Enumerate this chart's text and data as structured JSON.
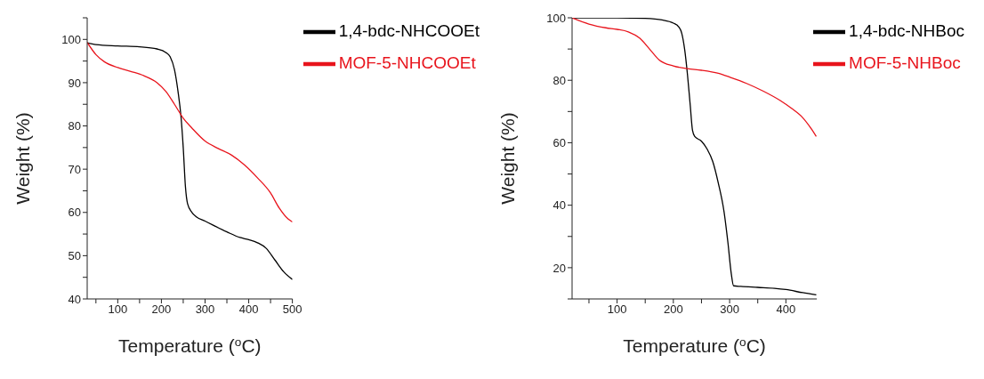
{
  "chart_data": [
    {
      "type": "line",
      "xlabel": "Temperature ($^{o}$C)",
      "ylabel": "Weight (%)",
      "xlim": [
        30,
        500
      ],
      "ylim": [
        40,
        105
      ],
      "xticks": [
        {
          "value": 50,
          "label": null
        },
        100,
        {
          "value": 150,
          "label": null
        },
        200,
        {
          "value": 250,
          "label": null
        },
        300,
        {
          "value": 350,
          "label": null
        },
        400,
        {
          "value": 450,
          "label": null
        },
        500
      ],
      "yticks": [
        40,
        {
          "value": 45,
          "label": null
        },
        50,
        {
          "value": 55,
          "label": null
        },
        60,
        {
          "value": 65,
          "label": null
        },
        70,
        {
          "value": 75,
          "label": null
        },
        80,
        {
          "value": 85,
          "label": null
        },
        90,
        {
          "value": 95,
          "label": null
        },
        100,
        {
          "value": 105,
          "label": null
        }
      ],
      "grid": false,
      "legend": "top right",
      "marker": "none",
      "line_style": "solid",
      "series": [
        {
          "name": "1,4-bdc-NHCOOEt",
          "color": "#000000",
          "x": [
            30,
            50,
            100,
            150,
            190,
            210,
            220,
            230,
            238,
            245,
            250,
            255,
            260,
            270,
            280,
            300,
            350,
            380,
            400,
            420,
            440,
            460,
            480,
            500
          ],
          "values": [
            99.2,
            98.8,
            98.5,
            98.3,
            97.8,
            97,
            96,
            93,
            88,
            82,
            75,
            66,
            62,
            60,
            59,
            58,
            55.5,
            54.2,
            53.7,
            53,
            51.7,
            49,
            46.3,
            44.5
          ]
        },
        {
          "name": "MOF-5-NHCOOEt",
          "color": "#e8141c",
          "x": [
            30,
            50,
            70,
            100,
            130,
            160,
            190,
            210,
            230,
            250,
            270,
            300,
            330,
            360,
            390,
            420,
            450,
            470,
            490,
            500
          ],
          "values": [
            99.3,
            96.5,
            94.8,
            93.5,
            92.6,
            91.6,
            90,
            88,
            85,
            81.8,
            79.5,
            76.5,
            74.8,
            73.3,
            71,
            68,
            64.5,
            61,
            58.5,
            57.8
          ]
        }
      ]
    },
    {
      "type": "line",
      "xlabel": "Temperature ($^{o}$C)",
      "ylabel": "Weight (%)",
      "xlim": [
        20,
        455
      ],
      "ylim": [
        10,
        100
      ],
      "xticks": [
        {
          "value": 50,
          "label": null
        },
        100,
        {
          "value": 150,
          "label": null
        },
        200,
        {
          "value": 250,
          "label": null
        },
        300,
        {
          "value": 350,
          "label": null
        },
        400
      ],
      "yticks": [
        {
          "value": 10,
          "label": null
        },
        20,
        {
          "value": 30,
          "label": null
        },
        40,
        {
          "value": 50,
          "label": null
        },
        60,
        {
          "value": 70,
          "label": null
        },
        80,
        {
          "value": 90,
          "label": null
        },
        100
      ],
      "grid": false,
      "legend": "top right",
      "marker": "none",
      "line_style": "solid",
      "series": [
        {
          "name": "1,4-bdc-NHBoc",
          "color": "#000000",
          "x": [
            20,
            100,
            150,
            180,
            200,
            210,
            215,
            220,
            225,
            230,
            234,
            238,
            250,
            260,
            270,
            280,
            290,
            297,
            303,
            307,
            320,
            350,
            380,
            400,
            430,
            454
          ],
          "values": [
            100,
            100,
            99.8,
            99.3,
            98.3,
            97,
            95,
            90,
            82,
            72,
            64,
            62,
            60.5,
            58,
            54,
            47,
            38,
            28,
            18,
            14.2,
            14,
            13.7,
            13.4,
            13,
            12,
            11.3
          ]
        },
        {
          "name": "MOF-5-NHBoc",
          "color": "#e8141c",
          "x": [
            20,
            50,
            80,
            100,
            120,
            140,
            160,
            175,
            200,
            225,
            250,
            280,
            300,
            330,
            360,
            390,
            410,
            430,
            445,
            454
          ],
          "values": [
            100,
            98,
            96.8,
            96.3,
            95.5,
            93.5,
            89.5,
            86.5,
            84.6,
            83.7,
            83.2,
            82.2,
            81,
            79,
            76.5,
            73.5,
            71,
            68,
            64.5,
            62
          ]
        }
      ]
    }
  ]
}
